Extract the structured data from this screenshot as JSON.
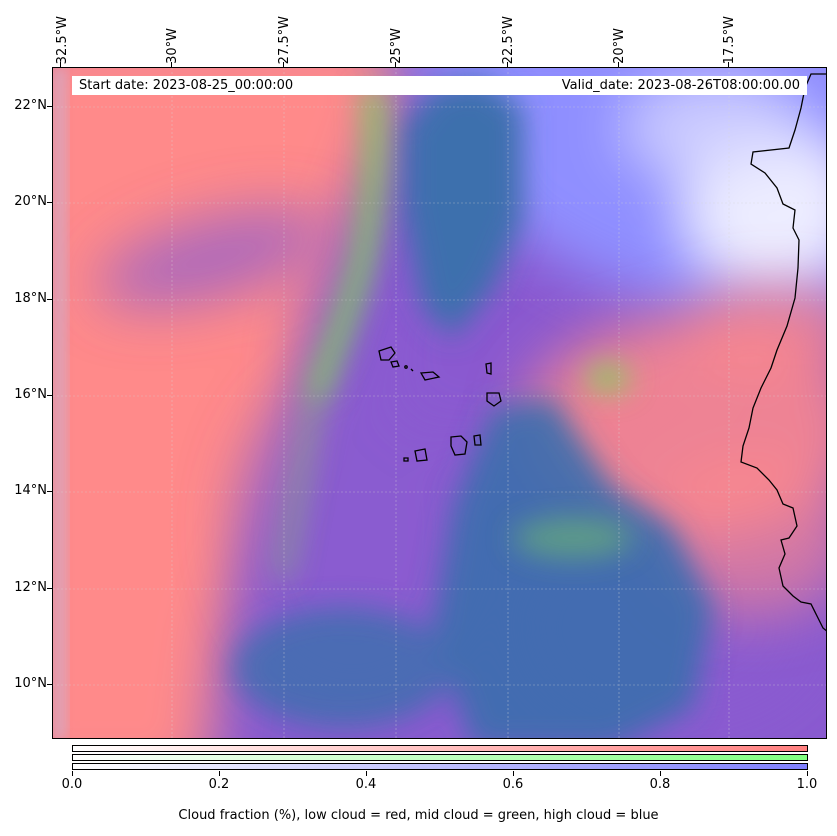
{
  "map": {
    "start_date": "Start date: 2023-08-25_00:00:00",
    "valid_date": "Valid_date: 2023-08-26T08:00:00.00",
    "lon_labels": [
      "32.5°W",
      "30°W",
      "27.5°W",
      "25°W",
      "22.5°W",
      "20°W",
      "17.5°W"
    ],
    "lat_labels": [
      "22°N",
      "20°N",
      "18°N",
      "16°N",
      "14°N",
      "12°N",
      "10°N"
    ],
    "colors": {
      "low_cloud": "#ff8a8a",
      "mid_cloud": "#7ed657",
      "high_cloud": "#8f8fff",
      "mixed_cloud": "#8a5bd0",
      "ocean": "#3c6fad",
      "coast": "#000000"
    }
  },
  "colorbar": {
    "tick_labels": [
      "0.0",
      "0.2",
      "0.4",
      "0.6",
      "0.8",
      "1.0"
    ],
    "title": "Cloud fraction (%), low cloud = red, mid cloud = green, high cloud = blue",
    "low_color": "#ff8080",
    "mid_color": "#80ff80",
    "high_color": "#8080ff"
  }
}
